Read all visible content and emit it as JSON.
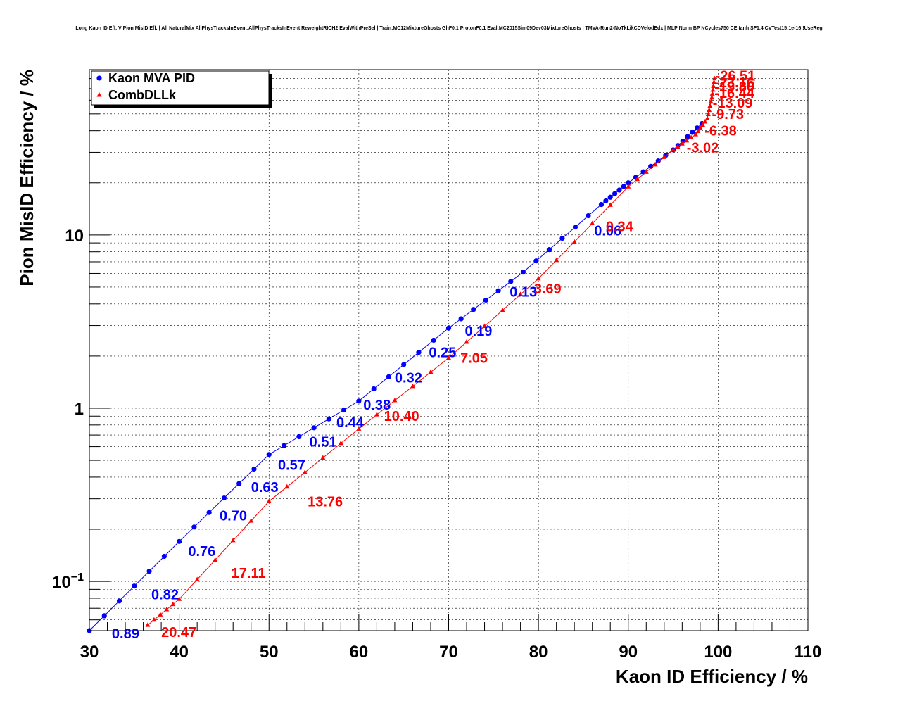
{
  "chart_data": {
    "type": "scatter",
    "title": "Long Kaon ID Eff. V Pion MisID Eff. | All NaturalMix AllPhysTracksInEvent:AllPhysTracksInEvent ReweightRICH2 EvalWithPreSel | Train:MC12MixtureGhosts GhF0.1 ProtonF0.1 Eval:MC2015Sim09Dev03MixtureGhosts | TMVA-Run2-NoTkLikCDVelodEdx | MLP Norm BP NCycles750 CE tanh SF1.4 CVTest15:1e-16 !UseReg",
    "xlabel": "Kaon ID Efficiency / %",
    "ylabel": "Pion MisID Efficiency / %",
    "xlim": [
      30,
      110
    ],
    "ylim": [
      0.052,
      90
    ],
    "yscale": "log",
    "grid": true,
    "legend_position": "top-left",
    "xticks": [
      "30",
      "40",
      "50",
      "60",
      "70",
      "80",
      "90",
      "100",
      "110"
    ],
    "yticks": [
      {
        "base": "10",
        "exp": "−1",
        "value": 0.1
      },
      {
        "base": "1",
        "exp": "",
        "value": 1
      },
      {
        "base": "10",
        "exp": "",
        "value": 10
      }
    ],
    "series": [
      {
        "name": "Kaon MVA PID",
        "color": "#0000ff",
        "marker": "circle",
        "anchors": [
          [
            30.0,
            0.052
          ],
          [
            40.0,
            0.17
          ],
          [
            50.0,
            0.54
          ],
          [
            60.0,
            1.1
          ],
          [
            70.0,
            2.9
          ],
          [
            78.3,
            6.1
          ],
          [
            87.0,
            15
          ],
          [
            90.0,
            20
          ],
          [
            95.0,
            31
          ],
          [
            98.2,
            44
          ]
        ],
        "labels": [
          {
            "text": "0.89",
            "x": 32.5,
            "y": 0.05
          },
          {
            "text": "0.82",
            "x": 36.9,
            "y": 0.084
          },
          {
            "text": "0.76",
            "x": 41.0,
            "y": 0.15
          },
          {
            "text": "0.70",
            "x": 44.5,
            "y": 0.24
          },
          {
            "text": "0.63",
            "x": 48.0,
            "y": 0.35
          },
          {
            "text": "0.57",
            "x": 51.0,
            "y": 0.47
          },
          {
            "text": "0.51",
            "x": 54.5,
            "y": 0.64
          },
          {
            "text": "0.44",
            "x": 57.5,
            "y": 0.83
          },
          {
            "text": "0.38",
            "x": 60.5,
            "y": 1.05
          },
          {
            "text": "0.32",
            "x": 64.0,
            "y": 1.5
          },
          {
            "text": "0.25",
            "x": 67.8,
            "y": 2.1
          },
          {
            "text": "0.19",
            "x": 71.8,
            "y": 2.8
          },
          {
            "text": "0.13",
            "x": 76.8,
            "y": 4.7
          },
          {
            "text": "0.06",
            "x": 86.2,
            "y": 10.6
          }
        ]
      },
      {
        "name": "CombDLLk",
        "color": "#ff0000",
        "marker": "triangle",
        "anchors": [
          [
            36.5,
            0.056
          ],
          [
            40.0,
            0.079
          ],
          [
            50.0,
            0.29
          ],
          [
            60.0,
            0.76
          ],
          [
            70.0,
            1.95
          ],
          [
            80.0,
            5.6
          ],
          [
            90.0,
            19
          ],
          [
            95.0,
            31
          ],
          [
            97.5,
            38
          ],
          [
            98.8,
            47
          ],
          [
            99.3,
            62
          ],
          [
            99.6,
            80
          ]
        ],
        "labels": [
          {
            "text": "20.47",
            "x": 38.0,
            "y": 0.051
          },
          {
            "text": "17.11",
            "x": 45.8,
            "y": 0.112
          },
          {
            "text": "13.76",
            "x": 54.3,
            "y": 0.29
          },
          {
            "text": "10.40",
            "x": 62.8,
            "y": 0.9
          },
          {
            "text": "7.05",
            "x": 71.3,
            "y": 1.95
          },
          {
            "text": "3.69",
            "x": 79.5,
            "y": 4.9
          },
          {
            "text": "0.34",
            "x": 87.5,
            "y": 11.2
          },
          {
            "text": "-3.02",
            "x": 96.5,
            "y": 32
          },
          {
            "text": "-6.38",
            "x": 98.5,
            "y": 40
          },
          {
            "text": "-9.73",
            "x": 99.3,
            "y": 50
          },
          {
            "text": "-13.09",
            "x": 99.4,
            "y": 58
          },
          {
            "text": "-16.44",
            "x": 99.6,
            "y": 66
          },
          {
            "text": "-19.80",
            "x": 99.6,
            "y": 72
          },
          {
            "text": "-23.16",
            "x": 99.6,
            "y": 76
          },
          {
            "text": "-26.51",
            "x": 99.7,
            "y": 83
          }
        ]
      }
    ]
  }
}
